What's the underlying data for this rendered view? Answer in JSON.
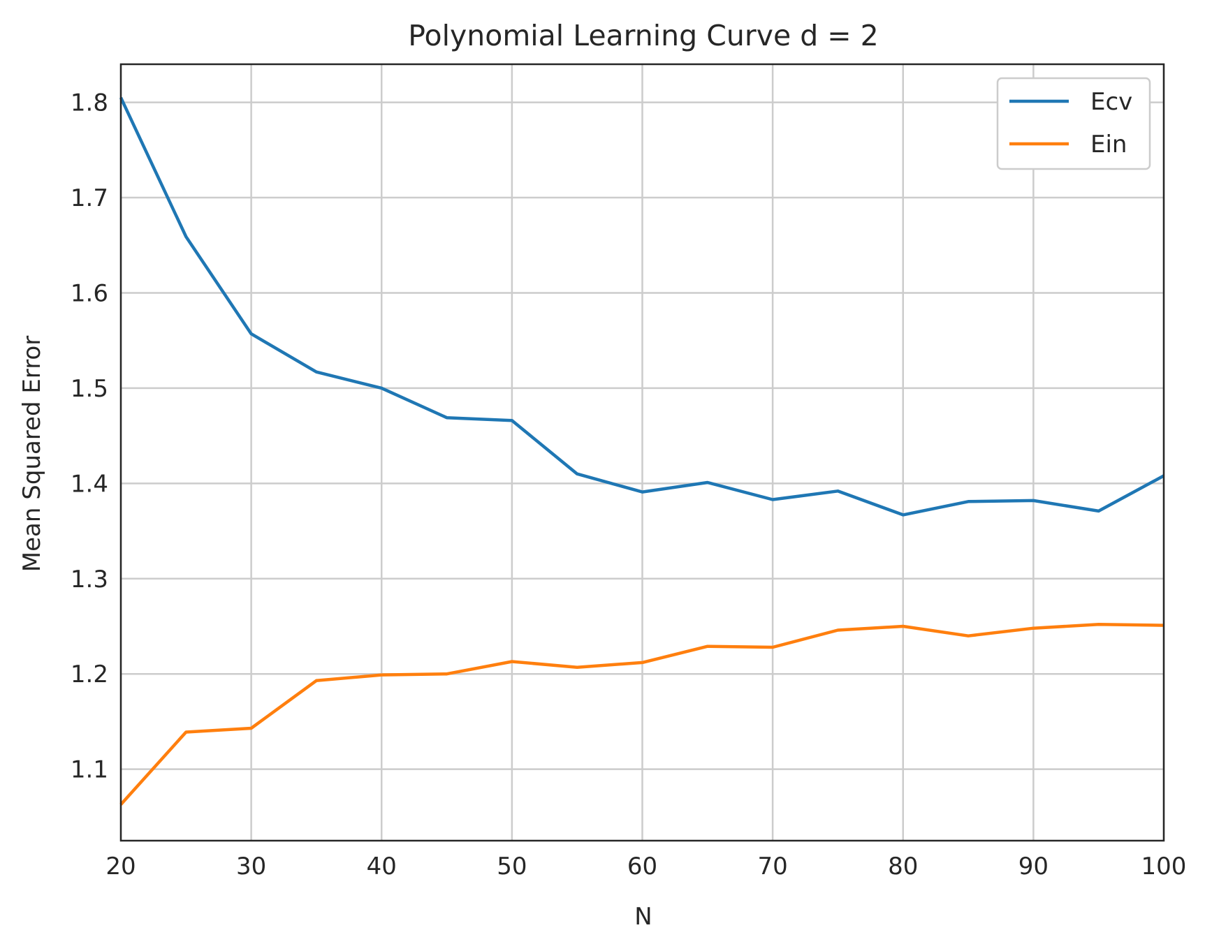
{
  "chart_data": {
    "type": "line",
    "title": "Polynomial Learning Curve d = 2",
    "xlabel": "N",
    "ylabel": "Mean Squared Error",
    "xlim": [
      20,
      100
    ],
    "ylim": [
      1.025,
      1.84
    ],
    "x_ticks": [
      20,
      30,
      40,
      50,
      60,
      70,
      80,
      90,
      100
    ],
    "y_ticks": [
      1.1,
      1.2,
      1.3,
      1.4,
      1.5,
      1.6,
      1.7,
      1.8
    ],
    "grid": true,
    "legend_position": "top-right",
    "x": [
      20,
      25,
      30,
      35,
      40,
      45,
      50,
      55,
      60,
      65,
      70,
      75,
      80,
      85,
      90,
      95,
      100
    ],
    "series": [
      {
        "name": "Ecv",
        "color": "#1f77b4",
        "values": [
          1.805,
          1.659,
          1.557,
          1.517,
          1.5,
          1.469,
          1.466,
          1.41,
          1.391,
          1.401,
          1.383,
          1.392,
          1.367,
          1.381,
          1.382,
          1.371,
          1.408
        ]
      },
      {
        "name": "Ein",
        "color": "#ff7f0e",
        "values": [
          1.063,
          1.139,
          1.143,
          1.193,
          1.199,
          1.2,
          1.213,
          1.207,
          1.212,
          1.229,
          1.228,
          1.246,
          1.25,
          1.24,
          1.248,
          1.252,
          1.251
        ]
      }
    ]
  }
}
